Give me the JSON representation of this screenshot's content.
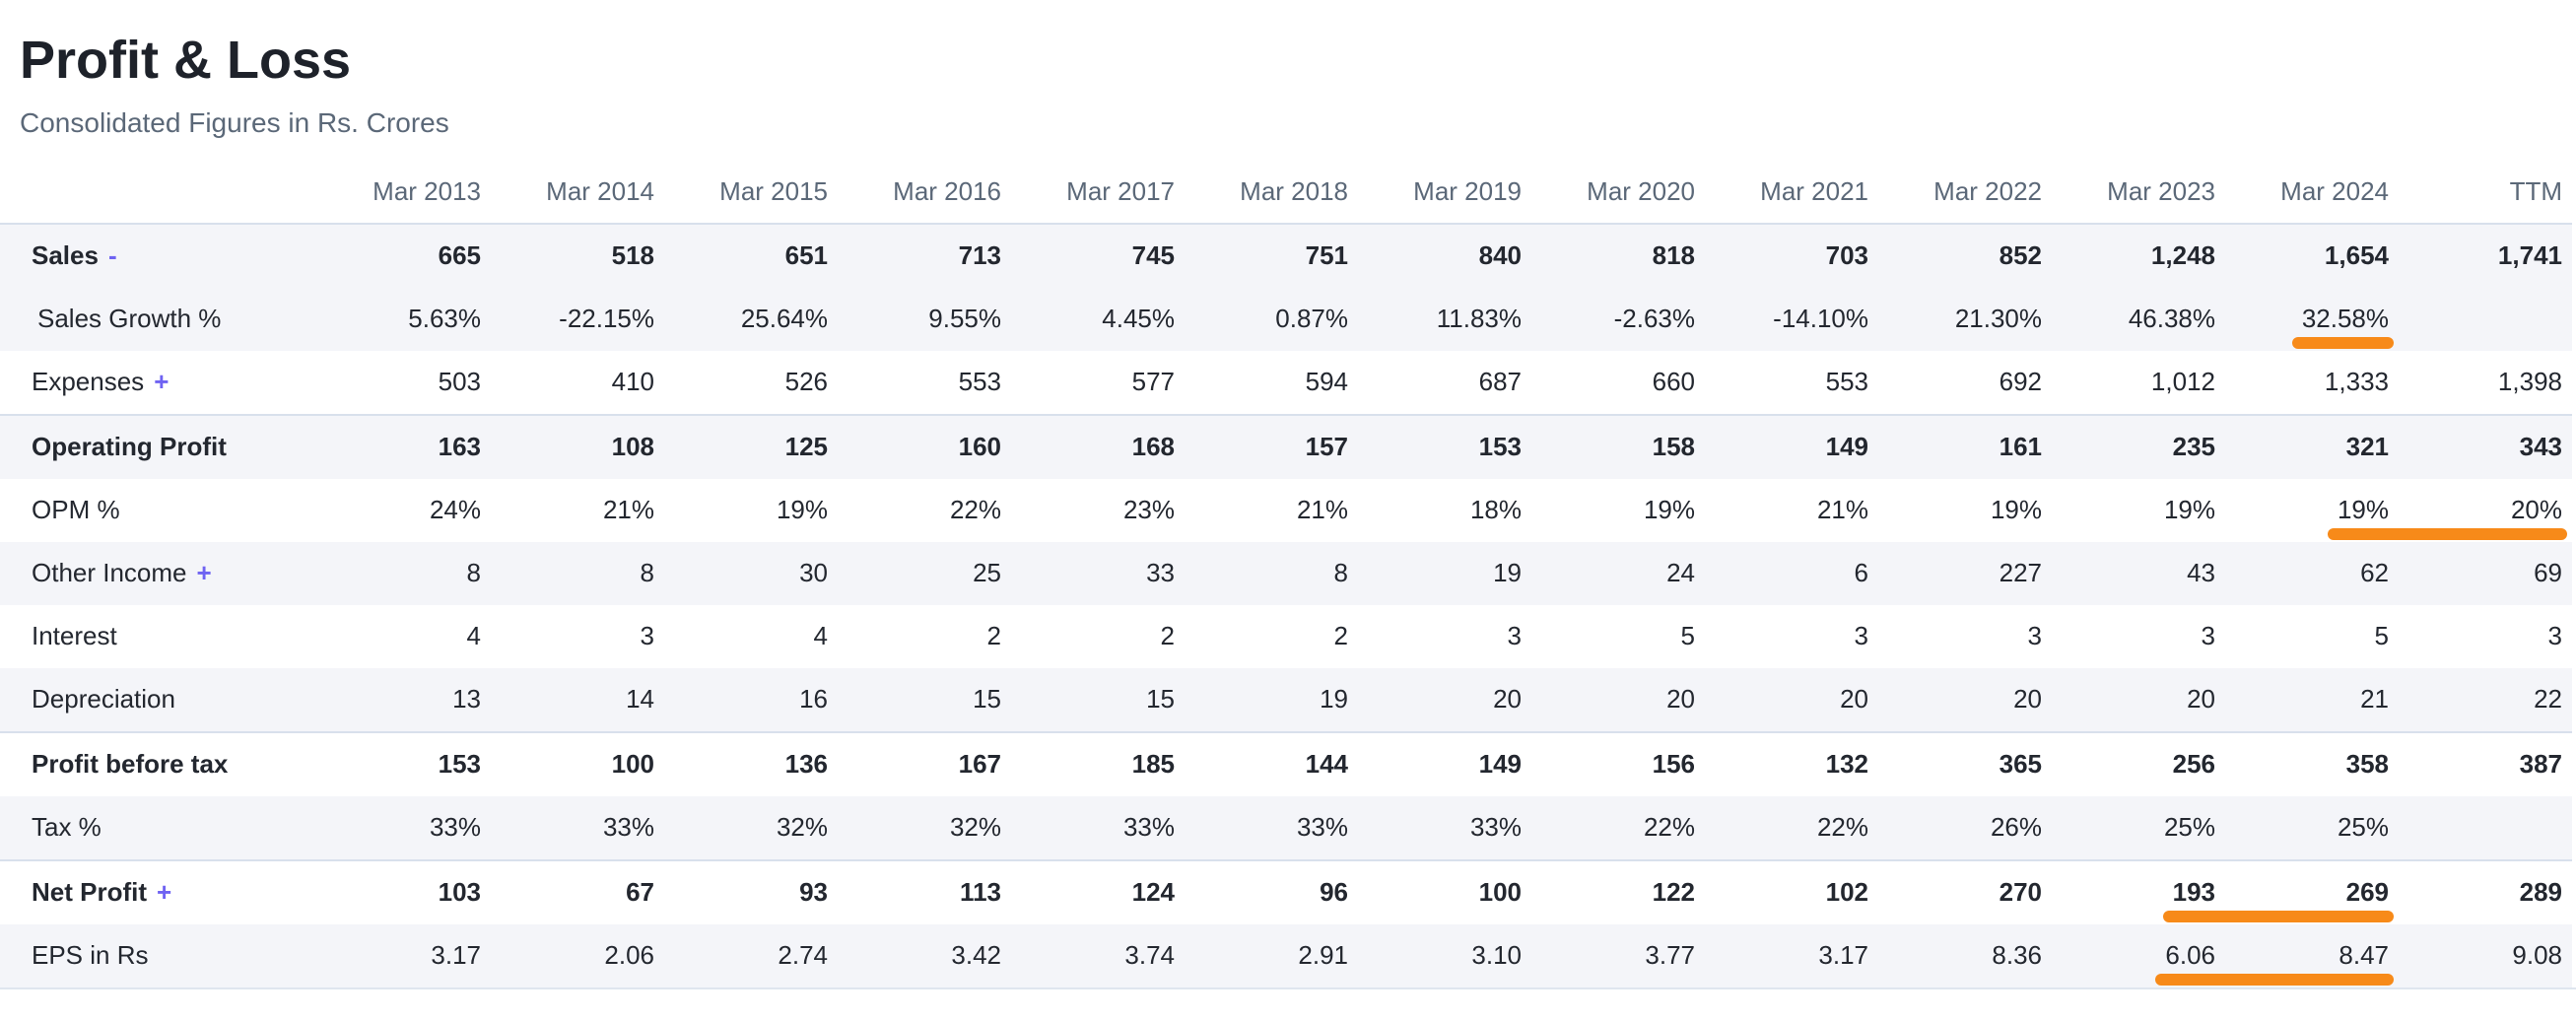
{
  "page": {
    "title": "Profit & Loss",
    "subtitle": "Consolidated Figures in Rs. Crores"
  },
  "colors": {
    "highlight_orange": "#f78a19",
    "toggle_purple": "#6f63f2",
    "stripe": "#f4f5f9",
    "heading_text": "#1e222a",
    "muted_text": "#5b6878",
    "body_text": "#23272f"
  },
  "table": {
    "columns": [
      "Mar 2013",
      "Mar 2014",
      "Mar 2015",
      "Mar 2016",
      "Mar 2017",
      "Mar 2018",
      "Mar 2019",
      "Mar 2020",
      "Mar 2021",
      "Mar 2022",
      "Mar 2023",
      "Mar 2024",
      "TTM"
    ],
    "rows": [
      {
        "label": "Sales",
        "sign": "-",
        "bold": true,
        "values": [
          "665",
          "518",
          "651",
          "713",
          "745",
          "751",
          "840",
          "818",
          "703",
          "852",
          "1,248",
          "1,654",
          "1,741"
        ],
        "highlights": []
      },
      {
        "label": "Sales Growth %",
        "indent": true,
        "values": [
          "5.63%",
          "-22.15%",
          "25.64%",
          "9.55%",
          "4.45%",
          "0.87%",
          "11.83%",
          "-2.63%",
          "-14.10%",
          "21.30%",
          "46.38%",
          "32.58%",
          ""
        ],
        "highlights": [
          11
        ]
      },
      {
        "label": "Expenses",
        "sign": "+",
        "values": [
          "503",
          "410",
          "526",
          "553",
          "577",
          "594",
          "687",
          "660",
          "553",
          "692",
          "1,012",
          "1,333",
          "1,398"
        ],
        "highlights": []
      },
      {
        "label": "Operating Profit",
        "bold": true,
        "values": [
          "163",
          "108",
          "125",
          "160",
          "168",
          "157",
          "153",
          "158",
          "149",
          "161",
          "235",
          "321",
          "343"
        ],
        "highlights": []
      },
      {
        "label": "OPM %",
        "values": [
          "24%",
          "21%",
          "19%",
          "22%",
          "23%",
          "21%",
          "18%",
          "19%",
          "21%",
          "19%",
          "19%",
          "19%",
          "20%"
        ],
        "highlights": [
          11,
          12
        ]
      },
      {
        "label": "Other Income",
        "sign": "+",
        "values": [
          "8",
          "8",
          "30",
          "25",
          "33",
          "8",
          "19",
          "24",
          "6",
          "227",
          "43",
          "62",
          "69"
        ],
        "highlights": []
      },
      {
        "label": "Interest",
        "values": [
          "4",
          "3",
          "4",
          "2",
          "2",
          "2",
          "3",
          "5",
          "3",
          "3",
          "3",
          "5",
          "3"
        ],
        "highlights": []
      },
      {
        "label": "Depreciation",
        "values": [
          "13",
          "14",
          "16",
          "15",
          "15",
          "19",
          "20",
          "20",
          "20",
          "20",
          "20",
          "21",
          "22"
        ],
        "highlights": []
      },
      {
        "label": "Profit before tax",
        "bold": true,
        "values": [
          "153",
          "100",
          "136",
          "167",
          "185",
          "144",
          "149",
          "156",
          "132",
          "365",
          "256",
          "358",
          "387"
        ],
        "highlights": []
      },
      {
        "label": "Tax %",
        "values": [
          "33%",
          "33%",
          "32%",
          "32%",
          "33%",
          "33%",
          "33%",
          "22%",
          "22%",
          "26%",
          "25%",
          "25%",
          ""
        ],
        "highlights": []
      },
      {
        "label": "Net Profit",
        "sign": "+",
        "bold": true,
        "values": [
          "103",
          "67",
          "93",
          "113",
          "124",
          "96",
          "100",
          "122",
          "102",
          "270",
          "193",
          "269",
          "289"
        ],
        "highlights": [
          10,
          11
        ]
      },
      {
        "label": "EPS in Rs",
        "values": [
          "3.17",
          "2.06",
          "2.74",
          "3.42",
          "3.74",
          "2.91",
          "3.10",
          "3.77",
          "3.17",
          "8.36",
          "6.06",
          "8.47",
          "9.08"
        ],
        "highlights": [
          10,
          11
        ]
      }
    ]
  }
}
